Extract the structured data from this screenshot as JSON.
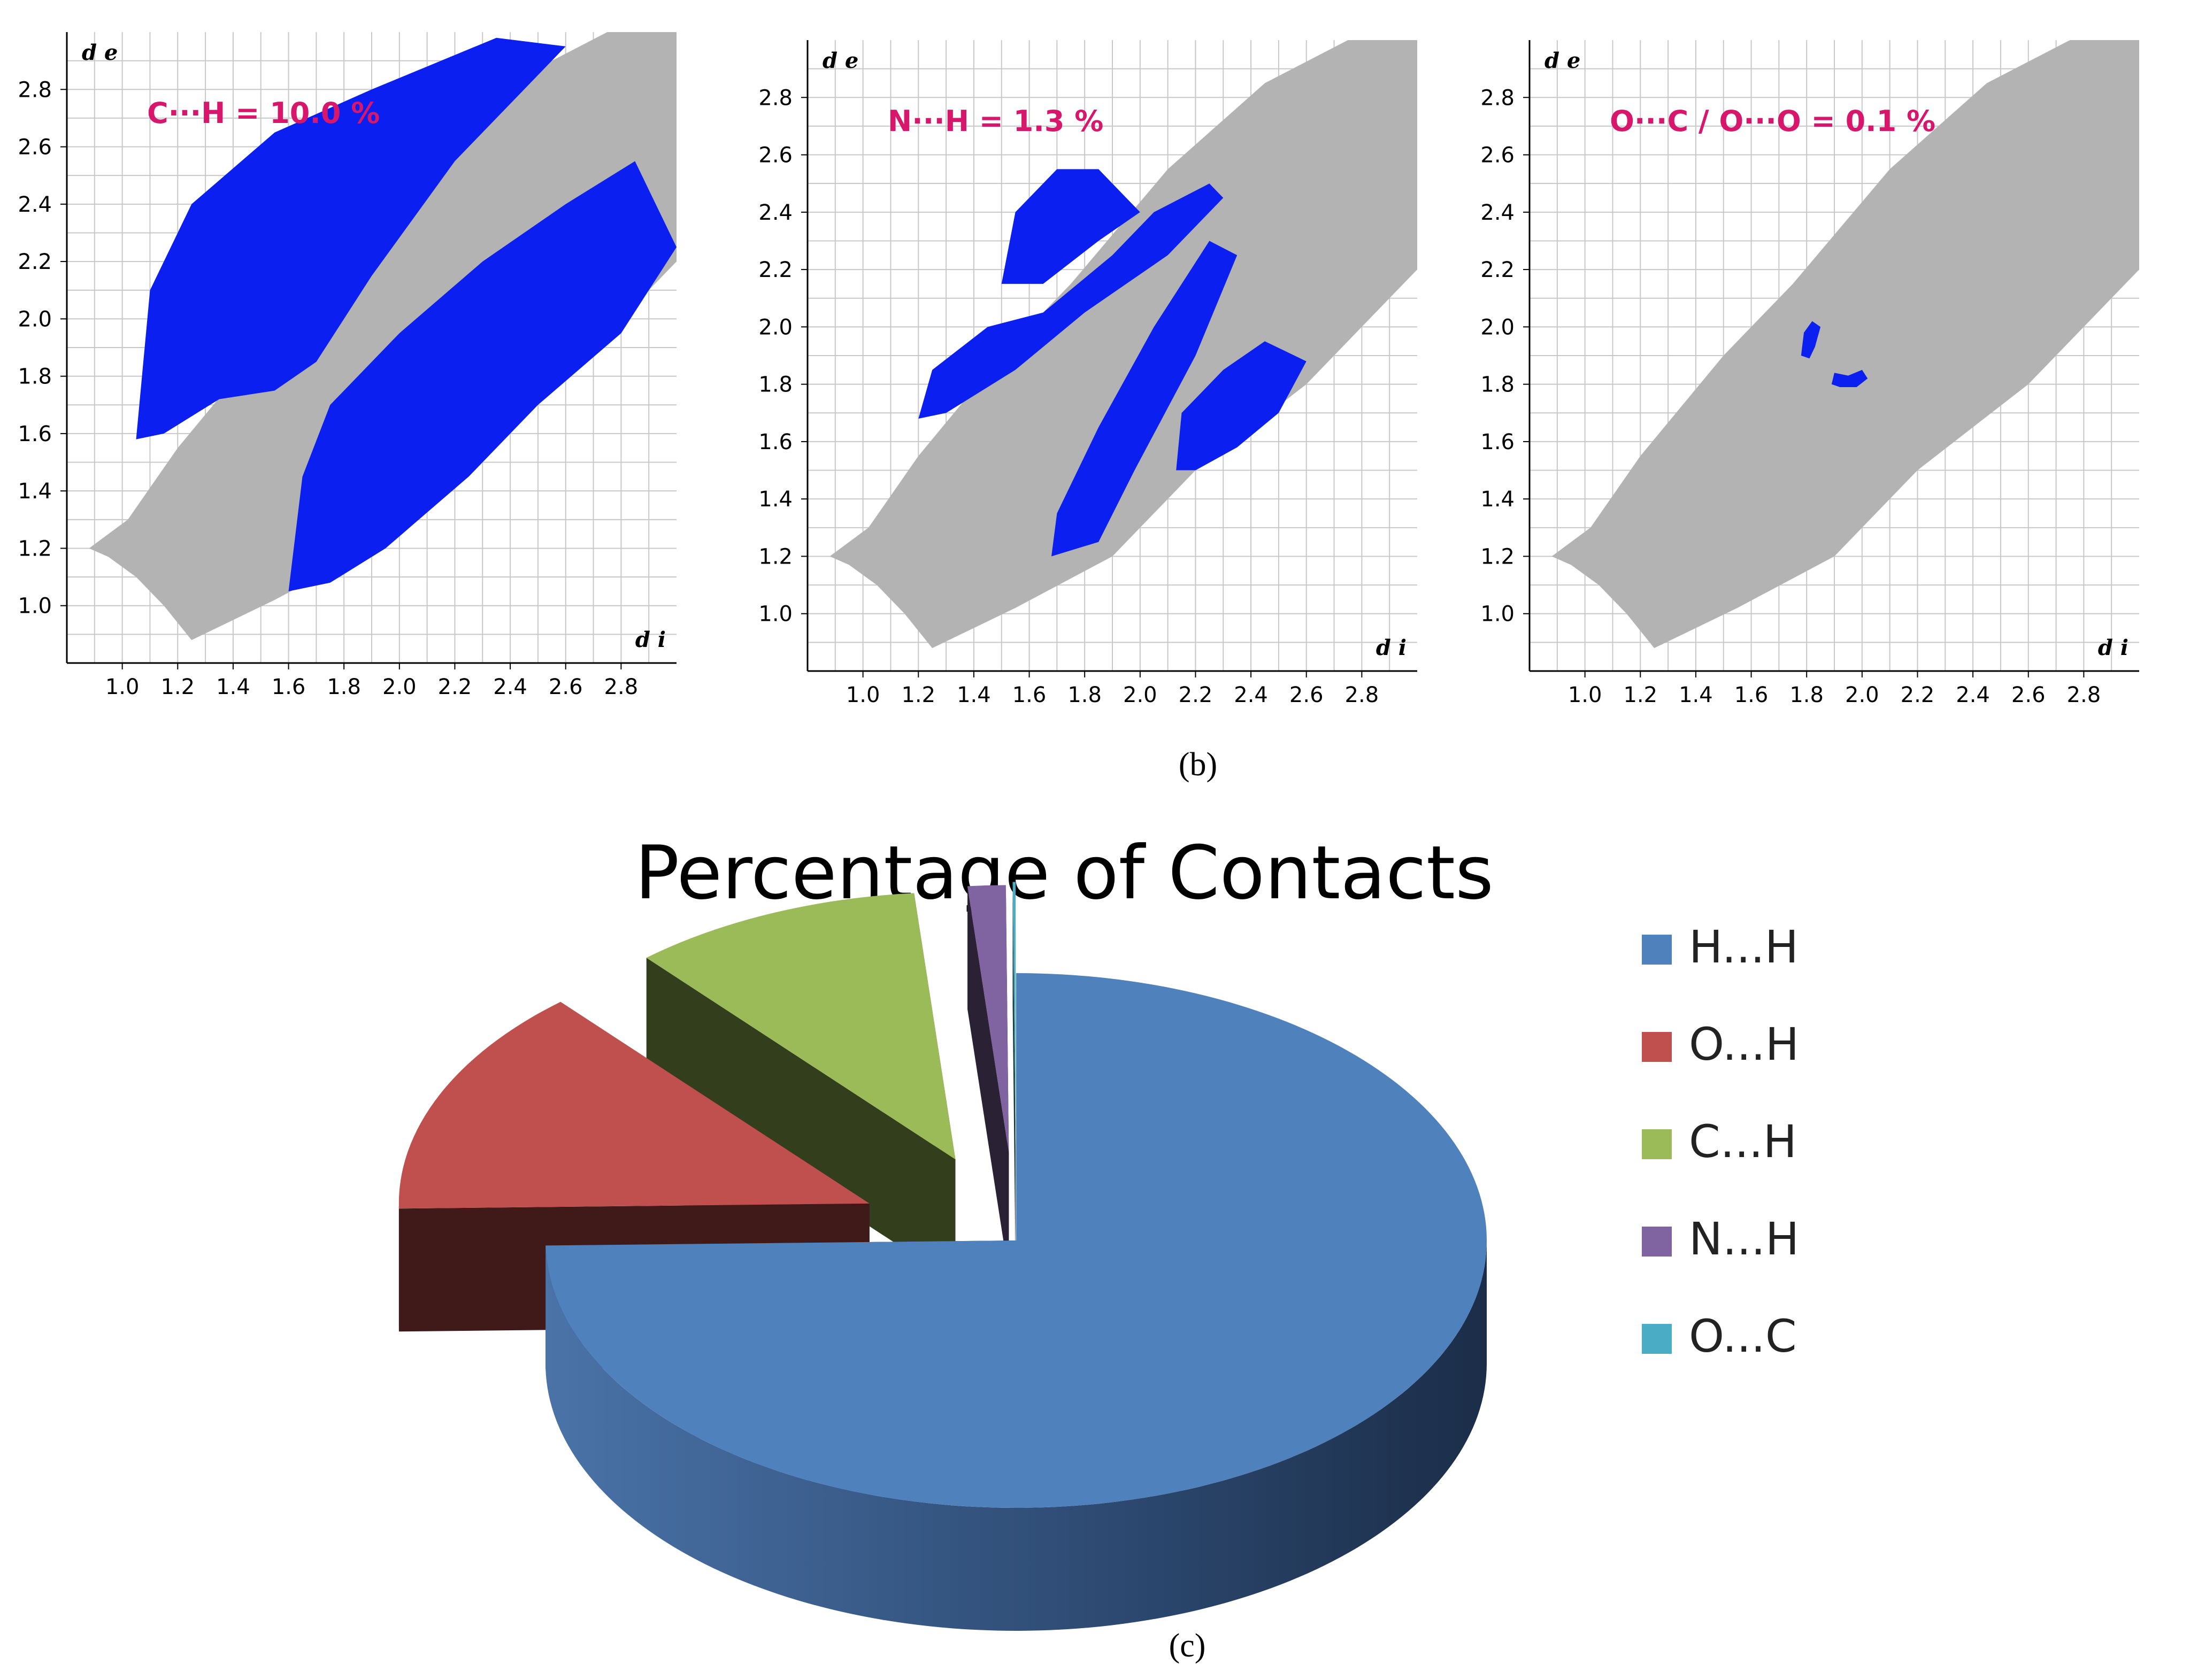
{
  "chart_data": [
    {
      "type": "heatmap",
      "annotation": "C···H = 10.0 %",
      "xlabel": "d i",
      "ylabel": "d e",
      "xlim": [
        0.8,
        3.0
      ],
      "ylim": [
        0.8,
        3.0
      ],
      "x_ticks": [
        "1.0",
        "1.2",
        "1.4",
        "1.6",
        "1.8",
        "2.0",
        "2.2",
        "2.4",
        "2.6",
        "2.8"
      ],
      "y_ticks": [
        "1.0",
        "1.2",
        "1.4",
        "1.6",
        "1.8",
        "2.0",
        "2.2",
        "2.4",
        "2.6",
        "2.8"
      ],
      "grid": true,
      "regions": [
        {
          "name": "background",
          "color": "#b3b3b3",
          "outline": [
            [
              0.88,
              1.2
            ],
            [
              1.02,
              1.3
            ],
            [
              1.2,
              1.55
            ],
            [
              1.5,
              1.9
            ],
            [
              1.75,
              2.15
            ],
            [
              2.1,
              2.55
            ],
            [
              2.45,
              2.85
            ],
            [
              2.75,
              3.0
            ],
            [
              3.0,
              3.0
            ],
            [
              3.0,
              2.2
            ],
            [
              2.6,
              1.8
            ],
            [
              2.2,
              1.5
            ],
            [
              1.9,
              1.2
            ],
            [
              1.55,
              1.02
            ],
            [
              1.25,
              0.88
            ],
            [
              1.15,
              1.0
            ],
            [
              1.05,
              1.1
            ],
            [
              0.95,
              1.17
            ]
          ]
        },
        {
          "name": "highlight-upper",
          "color": "#0a1ff0",
          "outline": [
            [
              1.05,
              1.58
            ],
            [
              1.1,
              2.1
            ],
            [
              1.25,
              2.4
            ],
            [
              1.55,
              2.65
            ],
            [
              1.9,
              2.8
            ],
            [
              2.35,
              2.98
            ],
            [
              2.6,
              2.95
            ],
            [
              2.2,
              2.55
            ],
            [
              1.9,
              2.15
            ],
            [
              1.7,
              1.85
            ],
            [
              1.55,
              1.75
            ],
            [
              1.35,
              1.72
            ],
            [
              1.15,
              1.6
            ]
          ]
        },
        {
          "name": "highlight-lower",
          "color": "#0a1ff0",
          "outline": [
            [
              1.6,
              1.05
            ],
            [
              1.65,
              1.45
            ],
            [
              1.75,
              1.7
            ],
            [
              2.0,
              1.95
            ],
            [
              2.3,
              2.2
            ],
            [
              2.6,
              2.4
            ],
            [
              2.85,
              2.55
            ],
            [
              3.0,
              2.25
            ],
            [
              2.8,
              1.95
            ],
            [
              2.5,
              1.7
            ],
            [
              2.25,
              1.45
            ],
            [
              1.95,
              1.2
            ],
            [
              1.75,
              1.08
            ]
          ]
        }
      ]
    },
    {
      "type": "heatmap",
      "annotation": "N···H = 1.3 %",
      "xlabel": "d i",
      "ylabel": "d e",
      "xlim": [
        0.8,
        3.0
      ],
      "ylim": [
        0.8,
        3.0
      ],
      "x_ticks": [
        "1.0",
        "1.2",
        "1.4",
        "1.6",
        "1.8",
        "2.0",
        "2.2",
        "2.4",
        "2.6",
        "2.8"
      ],
      "y_ticks": [
        "1.0",
        "1.2",
        "1.4",
        "1.6",
        "1.8",
        "2.0",
        "2.2",
        "2.4",
        "2.6",
        "2.8"
      ],
      "grid": true,
      "regions": [
        {
          "name": "background",
          "color": "#b3b3b3",
          "outline": [
            [
              0.88,
              1.2
            ],
            [
              1.02,
              1.3
            ],
            [
              1.2,
              1.55
            ],
            [
              1.5,
              1.9
            ],
            [
              1.75,
              2.15
            ],
            [
              2.1,
              2.55
            ],
            [
              2.45,
              2.85
            ],
            [
              2.75,
              3.0
            ],
            [
              3.0,
              3.0
            ],
            [
              3.0,
              2.2
            ],
            [
              2.6,
              1.8
            ],
            [
              2.2,
              1.5
            ],
            [
              1.9,
              1.2
            ],
            [
              1.55,
              1.02
            ],
            [
              1.25,
              0.88
            ],
            [
              1.15,
              1.0
            ],
            [
              1.05,
              1.1
            ],
            [
              0.95,
              1.17
            ]
          ]
        },
        {
          "name": "highlight-a",
          "color": "#0a1ff0",
          "outline": [
            [
              1.2,
              1.68
            ],
            [
              1.25,
              1.85
            ],
            [
              1.45,
              2.0
            ],
            [
              1.65,
              2.05
            ],
            [
              1.9,
              2.25
            ],
            [
              2.05,
              2.4
            ],
            [
              2.25,
              2.5
            ],
            [
              2.3,
              2.45
            ],
            [
              2.1,
              2.25
            ],
            [
              1.8,
              2.05
            ],
            [
              1.55,
              1.85
            ],
            [
              1.3,
              1.7
            ]
          ]
        },
        {
          "name": "highlight-b",
          "color": "#0a1ff0",
          "outline": [
            [
              1.5,
              2.15
            ],
            [
              1.55,
              2.4
            ],
            [
              1.7,
              2.55
            ],
            [
              1.85,
              2.55
            ],
            [
              2.0,
              2.4
            ],
            [
              1.85,
              2.3
            ],
            [
              1.65,
              2.15
            ]
          ]
        },
        {
          "name": "highlight-c",
          "color": "#0a1ff0",
          "outline": [
            [
              1.68,
              1.2
            ],
            [
              1.7,
              1.35
            ],
            [
              1.85,
              1.65
            ],
            [
              2.05,
              2.0
            ],
            [
              2.25,
              2.3
            ],
            [
              2.35,
              2.25
            ],
            [
              2.2,
              1.9
            ],
            [
              1.98,
              1.5
            ],
            [
              1.85,
              1.25
            ]
          ]
        },
        {
          "name": "highlight-d",
          "color": "#0a1ff0",
          "outline": [
            [
              2.13,
              1.5
            ],
            [
              2.15,
              1.7
            ],
            [
              2.3,
              1.85
            ],
            [
              2.45,
              1.95
            ],
            [
              2.6,
              1.88
            ],
            [
              2.5,
              1.7
            ],
            [
              2.35,
              1.58
            ],
            [
              2.2,
              1.5
            ]
          ]
        }
      ]
    },
    {
      "type": "heatmap",
      "annotation": "O···C / O···O = 0.1 %",
      "xlabel": "d i",
      "ylabel": "d e",
      "xlim": [
        0.8,
        3.0
      ],
      "ylim": [
        0.8,
        3.0
      ],
      "x_ticks": [
        "1.0",
        "1.2",
        "1.4",
        "1.6",
        "1.8",
        "2.0",
        "2.2",
        "2.4",
        "2.6",
        "2.8"
      ],
      "y_ticks": [
        "1.0",
        "1.2",
        "1.4",
        "1.6",
        "1.8",
        "2.0",
        "2.2",
        "2.4",
        "2.6",
        "2.8"
      ],
      "grid": true,
      "regions": [
        {
          "name": "background",
          "color": "#b3b3b3",
          "outline": [
            [
              0.88,
              1.2
            ],
            [
              1.02,
              1.3
            ],
            [
              1.2,
              1.55
            ],
            [
              1.5,
              1.9
            ],
            [
              1.75,
              2.15
            ],
            [
              2.1,
              2.55
            ],
            [
              2.45,
              2.85
            ],
            [
              2.75,
              3.0
            ],
            [
              3.0,
              3.0
            ],
            [
              3.0,
              2.2
            ],
            [
              2.6,
              1.8
            ],
            [
              2.2,
              1.5
            ],
            [
              1.9,
              1.2
            ],
            [
              1.55,
              1.02
            ],
            [
              1.25,
              0.88
            ],
            [
              1.15,
              1.0
            ],
            [
              1.05,
              1.1
            ],
            [
              0.95,
              1.17
            ]
          ]
        },
        {
          "name": "highlight-a",
          "color": "#0a1ff0",
          "outline": [
            [
              1.78,
              1.9
            ],
            [
              1.79,
              1.98
            ],
            [
              1.82,
              2.02
            ],
            [
              1.85,
              2.0
            ],
            [
              1.83,
              1.93
            ],
            [
              1.81,
              1.89
            ]
          ]
        },
        {
          "name": "highlight-b",
          "color": "#0a1ff0",
          "outline": [
            [
              1.89,
              1.8
            ],
            [
              1.9,
              1.84
            ],
            [
              1.95,
              1.83
            ],
            [
              2.0,
              1.85
            ],
            [
              2.02,
              1.82
            ],
            [
              1.98,
              1.79
            ],
            [
              1.92,
              1.79
            ]
          ]
        }
      ]
    },
    {
      "type": "pie",
      "title": "Percentage of Contacts",
      "labels": [
        "H...H",
        "O...H",
        "C...H",
        "N...H",
        "O...C"
      ],
      "values": [
        74.7,
        13.9,
        10.0,
        1.3,
        0.1
      ],
      "colors": [
        "#4f81bd",
        "#c0504d",
        "#9bbb59",
        "#8064a2",
        "#4bacc6"
      ],
      "legend": "right",
      "exploded": true,
      "style": "3d"
    }
  ],
  "panel_labels": {
    "b": "(b)",
    "c": "(c)"
  }
}
